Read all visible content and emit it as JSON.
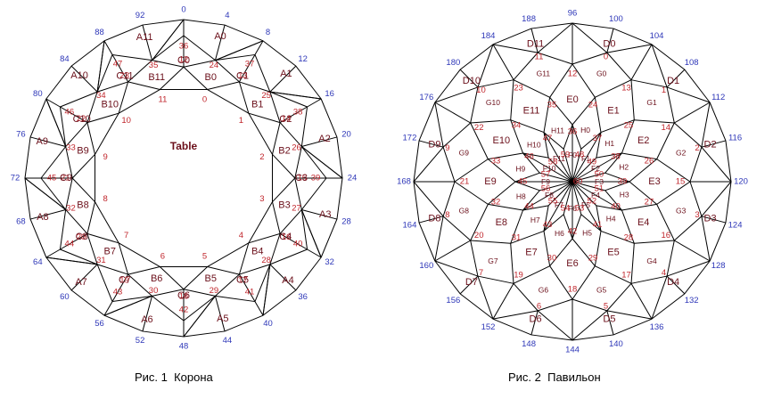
{
  "colors": {
    "edges": "#000000",
    "index_labels": "#2e37b8",
    "vertex_labels": "#c0262c",
    "facet_labels": "#6b0f1a"
  },
  "captions": {
    "crown": "Рис. 1  Корона",
    "pavilion": "Рис. 2  Павильон"
  },
  "crown": {
    "table_label": "Table",
    "outer_index": [
      "0",
      "4",
      "8",
      "12",
      "16",
      "20",
      "24",
      "28",
      "32",
      "36",
      "40",
      "44",
      "48",
      "52",
      "56",
      "60",
      "64",
      "68",
      "72",
      "76",
      "80",
      "84",
      "88",
      "92"
    ],
    "vertex_labels": [
      {
        "t": "36",
        "a": 0
      },
      {
        "t": "37",
        "a": 30
      },
      {
        "t": "38",
        "a": 60
      },
      {
        "t": "39",
        "a": 90
      },
      {
        "t": "40",
        "a": 120
      },
      {
        "t": "41",
        "a": 150
      },
      {
        "t": "42",
        "a": 180
      },
      {
        "t": "43",
        "a": 210
      },
      {
        "t": "44",
        "a": 240
      },
      {
        "t": "45",
        "a": 270
      },
      {
        "t": "46",
        "a": 300
      },
      {
        "t": "47",
        "a": 330
      },
      {
        "t": "24",
        "a": 15
      },
      {
        "t": "25",
        "a": 45
      },
      {
        "t": "26",
        "a": 75
      },
      {
        "t": "27",
        "a": 105
      },
      {
        "t": "28",
        "a": 135
      },
      {
        "t": "29",
        "a": 165
      },
      {
        "t": "30",
        "a": 195
      },
      {
        "t": "31",
        "a": 225
      },
      {
        "t": "32",
        "a": 255
      },
      {
        "t": "33",
        "a": 285
      },
      {
        "t": "34",
        "a": 315
      },
      {
        "t": "35",
        "a": 345
      },
      {
        "t": "12",
        "a": 0
      },
      {
        "t": "13",
        "a": 30
      },
      {
        "t": "14",
        "a": 60
      },
      {
        "t": "15",
        "a": 90
      },
      {
        "t": "16",
        "a": 120
      },
      {
        "t": "17",
        "a": 150
      },
      {
        "t": "18",
        "a": 180
      },
      {
        "t": "19",
        "a": 210
      },
      {
        "t": "20",
        "a": 240
      },
      {
        "t": "21",
        "a": 270
      },
      {
        "t": "22",
        "a": 300
      },
      {
        "t": "23",
        "a": 330
      },
      {
        "t": "0",
        "a": 15
      },
      {
        "t": "1",
        "a": 45
      },
      {
        "t": "2",
        "a": 75
      },
      {
        "t": "3",
        "a": 105
      },
      {
        "t": "4",
        "a": 135
      },
      {
        "t": "5",
        "a": 165
      },
      {
        "t": "6",
        "a": 195
      },
      {
        "t": "7",
        "a": 225
      },
      {
        "t": "8",
        "a": 255
      },
      {
        "t": "9",
        "a": 285
      },
      {
        "t": "10",
        "a": 315
      },
      {
        "t": "11",
        "a": 345
      }
    ],
    "facets_A": [
      "A0",
      "A1",
      "A2",
      "A3",
      "A4",
      "A5",
      "A6",
      "A7",
      "A8",
      "A9",
      "A10",
      "A11"
    ],
    "facets_C": [
      "C0",
      "C1",
      "C2",
      "C3",
      "C4",
      "C5",
      "C6",
      "C7",
      "C8",
      "C9",
      "C10",
      "C11"
    ],
    "facets_B": [
      "B0",
      "B1",
      "B2",
      "B3",
      "B4",
      "B5",
      "B6",
      "B7",
      "B8",
      "B9",
      "B10",
      "B11"
    ]
  },
  "pavilion": {
    "outer_index": [
      "96",
      "100",
      "104",
      "108",
      "112",
      "116",
      "120",
      "124",
      "128",
      "132",
      "136",
      "140",
      "144",
      "148",
      "152",
      "156",
      "160",
      "164",
      "168",
      "172",
      "176",
      "180",
      "184",
      "188"
    ],
    "facets_D": [
      "D0",
      "D1",
      "D2",
      "D3",
      "D4",
      "D5",
      "D6",
      "D7",
      "D8",
      "D9",
      "D10",
      "D11"
    ],
    "facets_G": [
      "G0",
      "G1",
      "G2",
      "G3",
      "G4",
      "G5",
      "G6",
      "G7",
      "G8",
      "G9",
      "G10",
      "G11"
    ],
    "facets_E": [
      "E0",
      "E1",
      "E2",
      "E3",
      "E4",
      "E5",
      "E6",
      "E7",
      "E8",
      "E9",
      "E10",
      "E11"
    ],
    "facets_H": [
      "H0",
      "H1",
      "H2",
      "H3",
      "H4",
      "H5",
      "H6",
      "H7",
      "H8",
      "H9",
      "H10",
      "H11"
    ],
    "facets_F": [
      "F0",
      "F1",
      "F2",
      "F3",
      "F4",
      "F5",
      "F6",
      "F7",
      "F8",
      "F9",
      "F10",
      "F11"
    ],
    "vertex_ring1": [
      "0",
      "1",
      "2",
      "3",
      "4",
      "5",
      "6",
      "7",
      "8",
      "9",
      "10",
      "11"
    ],
    "vertex_ring2": [
      "12",
      "13",
      "14",
      "15",
      "16",
      "17",
      "18",
      "19",
      "20",
      "21",
      "22",
      "23"
    ],
    "vertex_ring3": [
      "24",
      "25",
      "26",
      "27",
      "28",
      "29",
      "30",
      "31",
      "32",
      "33",
      "34",
      "35"
    ],
    "vertex_ring4": [
      "36",
      "37",
      "38",
      "39",
      "40",
      "41",
      "42",
      "43",
      "44",
      "45",
      "46",
      "47"
    ],
    "vertex_ring5": [
      "48",
      "49",
      "50",
      "51",
      "52",
      "53",
      "54",
      "55",
      "56",
      "57",
      "58",
      "59"
    ],
    "center_label": "60"
  }
}
